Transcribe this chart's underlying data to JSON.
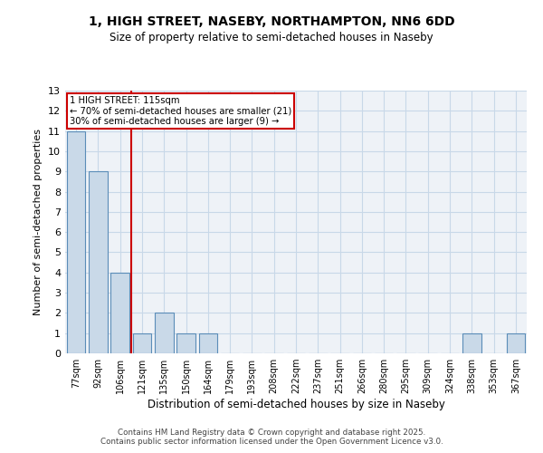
{
  "title1": "1, HIGH STREET, NASEBY, NORTHAMPTON, NN6 6DD",
  "title2": "Size of property relative to semi-detached houses in Naseby",
  "xlabel": "Distribution of semi-detached houses by size in Naseby",
  "ylabel": "Number of semi-detached properties",
  "categories": [
    "77sqm",
    "92sqm",
    "106sqm",
    "121sqm",
    "135sqm",
    "150sqm",
    "164sqm",
    "179sqm",
    "193sqm",
    "208sqm",
    "222sqm",
    "237sqm",
    "251sqm",
    "266sqm",
    "280sqm",
    "295sqm",
    "309sqm",
    "324sqm",
    "338sqm",
    "353sqm",
    "367sqm"
  ],
  "values": [
    11,
    9,
    4,
    1,
    2,
    1,
    1,
    0,
    0,
    0,
    0,
    0,
    0,
    0,
    0,
    0,
    0,
    0,
    1,
    0,
    1
  ],
  "bar_color": "#c9d9e8",
  "bar_edge_color": "#5b8db8",
  "vline_color": "#cc0000",
  "annotation_title": "1 HIGH STREET: 115sqm",
  "annotation_line1": "← 70% of semi-detached houses are smaller (21)",
  "annotation_line2": "30% of semi-detached houses are larger (9) →",
  "annotation_box_color": "#cc0000",
  "ylim": [
    0,
    13
  ],
  "yticks": [
    0,
    1,
    2,
    3,
    4,
    5,
    6,
    7,
    8,
    9,
    10,
    11,
    12,
    13
  ],
  "footer1": "Contains HM Land Registry data © Crown copyright and database right 2025.",
  "footer2": "Contains public sector information licensed under the Open Government Licence v3.0.",
  "bg_color": "#eef2f7",
  "grid_color": "#c8d8e8"
}
